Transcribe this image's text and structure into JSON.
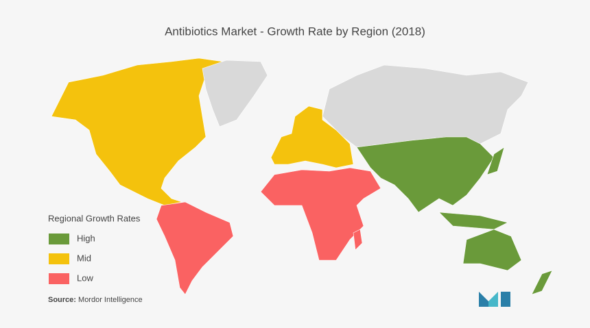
{
  "title": "Antibiotics Market  - Growth Rate by Region (2018)",
  "legend": {
    "title": "Regional Growth Rates",
    "items": [
      {
        "label": "High",
        "color": "#6a9a3a"
      },
      {
        "label": "Mid",
        "color": "#f4c20d"
      },
      {
        "label": "Low",
        "color": "#fa6262"
      }
    ]
  },
  "other_color": "#d9d9d9",
  "source": {
    "label": "Source:",
    "text": "Mordor Intelligence"
  }
}
